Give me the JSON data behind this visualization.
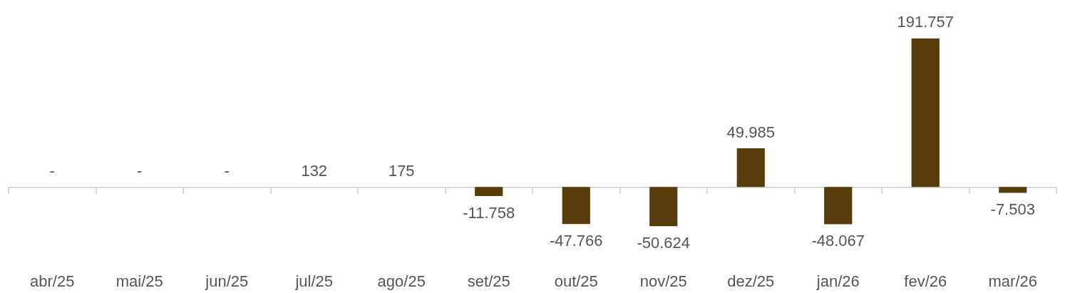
{
  "chart_data": {
    "type": "bar",
    "categories": [
      "abr/25",
      "mai/25",
      "jun/25",
      "jul/25",
      "ago/25",
      "set/25",
      "out/25",
      "nov/25",
      "dez/25",
      "jan/26",
      "fev/26",
      "mar/26"
    ],
    "values": [
      0,
      0,
      0,
      132,
      175,
      -11758,
      -47766,
      -50624,
      49985,
      -48067,
      191757,
      -7503
    ],
    "value_labels": [
      "-",
      "-",
      "-",
      "132",
      "175",
      "-11.758",
      "-47.766",
      "-50.624",
      "49.985",
      "-48.067",
      "191.757",
      "-7.503"
    ],
    "color": "#553c0a"
  }
}
